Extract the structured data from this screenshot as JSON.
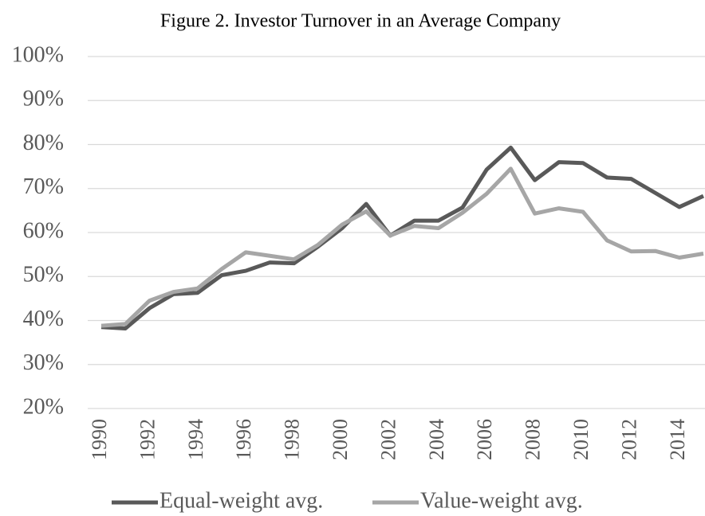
{
  "chart_data": {
    "type": "line",
    "title": "Figure 2. Investor Turnover in an Average Company",
    "x": [
      1990,
      1991,
      1992,
      1993,
      1994,
      1995,
      1996,
      1997,
      1998,
      1999,
      2000,
      2001,
      2002,
      2003,
      2004,
      2005,
      2006,
      2007,
      2008,
      2009,
      2010,
      2011,
      2012,
      2013,
      2014,
      2015
    ],
    "series": [
      {
        "name": "Equal-weight avg.",
        "color": "#595959",
        "values": [
          38.5,
          38.2,
          42.8,
          46,
          46.3,
          50.3,
          51.3,
          53.2,
          53,
          56.8,
          61,
          66.5,
          59.3,
          62.7,
          62.7,
          65.7,
          74.3,
          79.3,
          71.9,
          76,
          75.8,
          72.5,
          72.2,
          69,
          65.8,
          68.3
        ]
      },
      {
        "name": "Value-weight avg.",
        "color": "#a6a6a6",
        "values": [
          38.8,
          39.2,
          44.5,
          46.5,
          47.3,
          51.7,
          55.5,
          54.7,
          53.9,
          57.2,
          61.8,
          64.8,
          59.3,
          61.5,
          61,
          64.5,
          68.8,
          74.5,
          64.3,
          65.5,
          64.7,
          58.2,
          55.7,
          55.8,
          54.3,
          55.2
        ]
      }
    ],
    "xlim": [
      1990,
      2015
    ],
    "xticks": [
      1990,
      1992,
      1994,
      1996,
      1998,
      2000,
      2002,
      2004,
      2006,
      2008,
      2010,
      2012,
      2014
    ],
    "ylim": [
      20,
      100
    ],
    "yticks": [
      {
        "value": 20,
        "label": "20%"
      },
      {
        "value": 30,
        "label": "30%"
      },
      {
        "value": 40,
        "label": "40%"
      },
      {
        "value": 50,
        "label": "50%"
      },
      {
        "value": 60,
        "label": "60%"
      },
      {
        "value": 70,
        "label": "70%"
      },
      {
        "value": 80,
        "label": "80%"
      },
      {
        "value": 90,
        "label": "90%"
      },
      {
        "value": 100,
        "label": "100%"
      }
    ],
    "grid": true,
    "legend": "bottom"
  }
}
